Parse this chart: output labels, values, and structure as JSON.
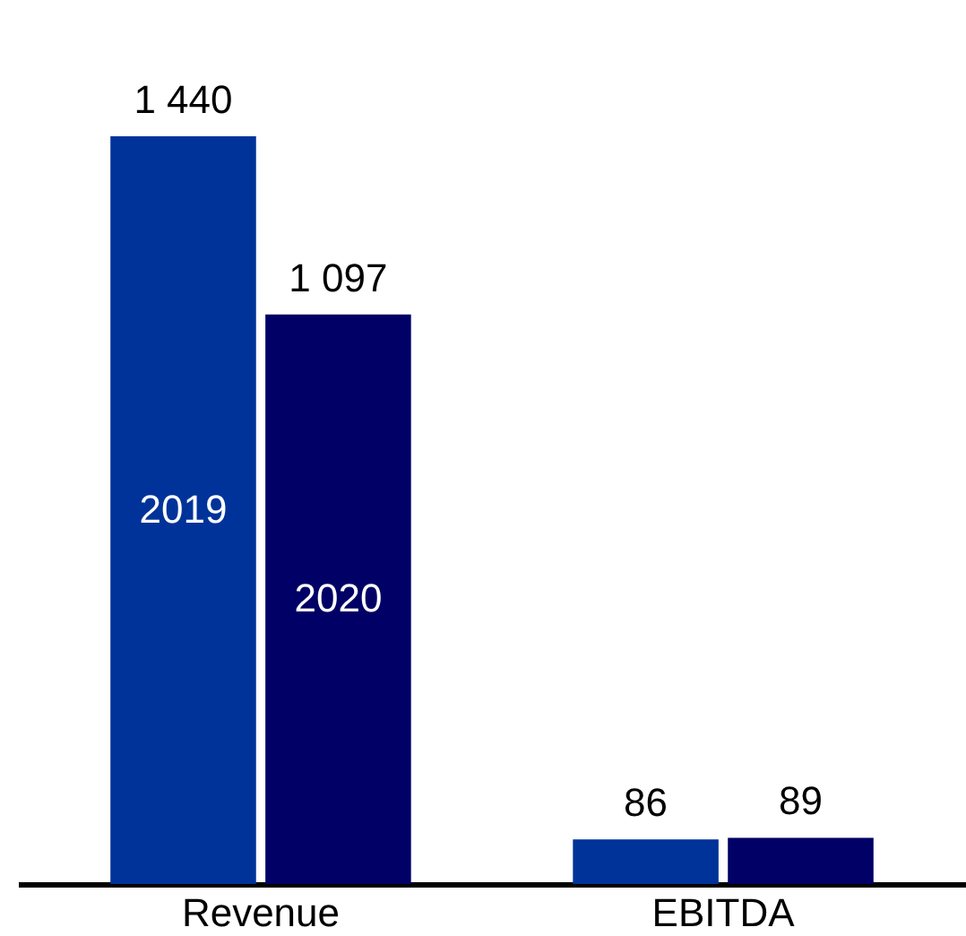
{
  "chart_data": {
    "type": "bar",
    "categories": [
      "Revenue",
      "EBITDA"
    ],
    "series": [
      {
        "name": "2019",
        "color": "#003399",
        "values": [
          1440,
          86
        ],
        "value_labels": [
          "1 440",
          "86"
        ]
      },
      {
        "name": "2020",
        "color": "#000066",
        "values": [
          1097,
          89
        ],
        "value_labels": [
          "1 097",
          "89"
        ]
      }
    ],
    "legend": false,
    "tick_labels": "x"
  }
}
